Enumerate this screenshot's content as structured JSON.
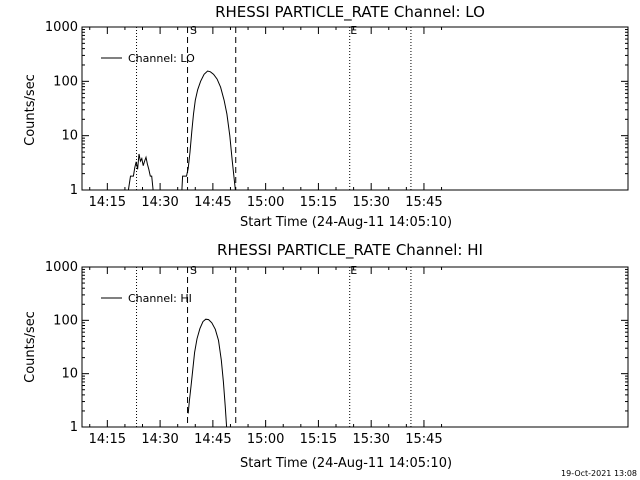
{
  "footer": {
    "timestamp": "19-Oct-2021 13:08"
  },
  "chart_data": [
    {
      "type": "line",
      "title": "RHESSI PARTICLE_RATE Channel: LO",
      "xlabel": "Start Time (24-Aug-11 14:05:10)",
      "ylabel": "Counts/sec",
      "y_scale": "log",
      "ylim": [
        1,
        1000
      ],
      "y_ticks": [
        "1",
        "10",
        "100",
        "1000"
      ],
      "xlim_min": [
        7.8,
        163
      ],
      "x_ticks": [
        "14:15",
        "14:30",
        "14:45",
        "15:00",
        "15:15",
        "15:30",
        "15:45"
      ],
      "x_tick_minutes": [
        15,
        30,
        45,
        60,
        75,
        90,
        105
      ],
      "legend": {
        "label": "Channel: LO",
        "placement": "top-left"
      },
      "markers": [
        {
          "label": "S",
          "t": 37.8
        },
        {
          "label": "E",
          "t": 83.9
        }
      ],
      "dashed_lines_min": [
        37.8,
        51.5
      ],
      "dotted_lines_min": [
        23.3,
        83.9,
        101.3
      ],
      "series": [
        {
          "name": "Channel: LO",
          "segments": [
            [
              [
                21.0,
                1
              ],
              [
                21.6,
                1.8
              ],
              [
                22.4,
                1.8
              ],
              [
                22.8,
                2.6
              ],
              [
                23.2,
                3.3
              ],
              [
                23.6,
                2.4
              ],
              [
                24.0,
                4.6
              ],
              [
                24.4,
                3.4
              ],
              [
                24.8,
                3.8
              ],
              [
                25.2,
                2.8
              ],
              [
                25.6,
                3.4
              ],
              [
                26.0,
                4.0
              ],
              [
                26.4,
                3.0
              ],
              [
                26.8,
                2.4
              ],
              [
                27.2,
                1.8
              ],
              [
                27.6,
                1.8
              ],
              [
                28.0,
                1
              ]
            ],
            [
              [
                36.2,
                1
              ],
              [
                36.4,
                1.8
              ],
              [
                37.5,
                1.8
              ],
              [
                38.0,
                2.5
              ],
              [
                38.5,
                5
              ],
              [
                39.0,
                12
              ],
              [
                39.5,
                25
              ],
              [
                40.0,
                45
              ],
              [
                40.7,
                70
              ],
              [
                41.5,
                100
              ],
              [
                42.5,
                135
              ],
              [
                43.5,
                155
              ],
              [
                44.3,
                150
              ],
              [
                45.2,
                135
              ],
              [
                46.2,
                110
              ],
              [
                47.2,
                78
              ],
              [
                48.2,
                45
              ],
              [
                49.0,
                25
              ],
              [
                49.8,
                10
              ],
              [
                50.5,
                3.5
              ],
              [
                51.2,
                1.3
              ],
              [
                51.4,
                1
              ]
            ]
          ]
        }
      ]
    },
    {
      "type": "line",
      "title": "RHESSI PARTICLE_RATE Channel: HI",
      "xlabel": "Start Time (24-Aug-11 14:05:10)",
      "ylabel": "Counts/sec",
      "y_scale": "log",
      "ylim": [
        1,
        1000
      ],
      "y_ticks": [
        "1",
        "10",
        "100",
        "1000"
      ],
      "xlim_min": [
        7.8,
        163
      ],
      "x_ticks": [
        "14:15",
        "14:30",
        "14:45",
        "15:00",
        "15:15",
        "15:30",
        "15:45"
      ],
      "x_tick_minutes": [
        15,
        30,
        45,
        60,
        75,
        90,
        105
      ],
      "legend": {
        "label": "Channel: HI",
        "placement": "top-left"
      },
      "markers": [
        {
          "label": "S",
          "t": 37.8
        },
        {
          "label": "E",
          "t": 83.9
        }
      ],
      "dashed_lines_min": [
        37.8,
        51.5
      ],
      "dotted_lines_min": [
        23.3,
        83.9,
        101.3
      ],
      "series": [
        {
          "name": "Channel: HI",
          "segments": [
            [
              [
                38.0,
                1.8
              ],
              [
                38.3,
                3
              ],
              [
                38.8,
                6
              ],
              [
                39.3,
                12
              ],
              [
                39.8,
                25
              ],
              [
                40.5,
                45
              ],
              [
                41.3,
                70
              ],
              [
                42.2,
                95
              ],
              [
                43.0,
                105
              ],
              [
                43.8,
                103
              ],
              [
                44.7,
                90
              ],
              [
                45.7,
                68
              ],
              [
                46.6,
                42
              ],
              [
                47.4,
                18
              ],
              [
                48.0,
                7
              ],
              [
                48.5,
                2.5
              ],
              [
                48.9,
                1
              ]
            ]
          ]
        }
      ]
    }
  ]
}
